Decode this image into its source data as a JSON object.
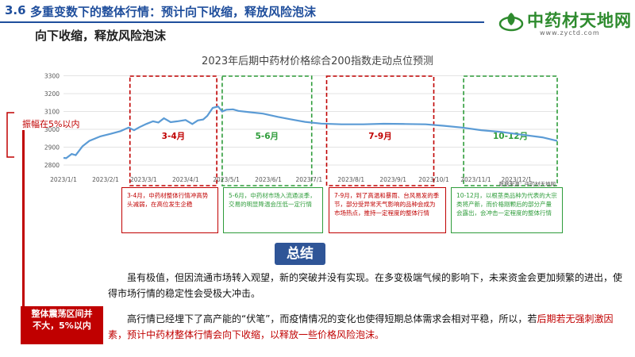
{
  "header": {
    "section_number": "3.6",
    "section_title": "多重变数下的整体行情：预计向下收缩，释放风险泡沫",
    "subtitle": "向下收缩，释放风险泡沫",
    "logo_text": "中药材天地网",
    "logo_url": "www.zyctd.com"
  },
  "range_label": "振幅在5%以内",
  "left_box": {
    "line1": "整体震荡区间并",
    "line2": "不大，5%以内"
  },
  "source_note": "数据来源：中药材天地网",
  "summary_label": "总结",
  "notes": [
    {
      "text": "3-4月，中药材整体行情冲高势头减弱，在高位发生企稳"
    },
    {
      "text": "5-6月，中药材市场入流通淡季，交易的明显降温会压低一定行情"
    },
    {
      "text": "7-9月，到了高温和暴雨、台风易发的季节，部分受异常天气影响的品种会成为市场热点，推持一定程度的整体行情"
    },
    {
      "text": "10-12月，以根茎类品种为代表的大宗类将产新，而价格刚颗后的部分产量会露出，会冲击一定程度的整体行情"
    }
  ],
  "paragraphs": {
    "p1": "虽有极值，但因流通市场转入观望，新的突破并没有实现。在多变极端气候的影响下，未来资金会更加频繁的进出，使得市场行情的稳定性会受极大冲击。",
    "p2_a": "高行情已经埋下了高产能的“伏笔”，而疫情情况的变化也使得短期总体需求会相对平稳，所以，若",
    "p2_b": "后期若无强刺激因素，预计中药材整体行情会向下收缩，以释放一些价格风险泡沫。"
  },
  "colors": {
    "accent": "#1f4e9c",
    "red": "#c00000",
    "green": "#2e9c3a",
    "line": "#5b9bd5"
  },
  "chart_data": {
    "type": "line",
    "title": "2023年后期中药材价格综合200指数走动点位预测",
    "x_ticks": [
      "2023/1/1",
      "2023/2/1",
      "2023/3/1",
      "2023/4/1",
      "2023/5/1",
      "2023/6/1",
      "2023/7/1",
      "2023/8/1",
      "2023/9/1",
      "2023/10/1",
      "2023/11/1",
      "2023/12/1"
    ],
    "y_ticks": [
      2800,
      2900,
      3000,
      3100,
      3200,
      3300
    ],
    "ylim": [
      2760,
      3320
    ],
    "grid": true,
    "series": [
      {
        "values": [
          [
            "2023-01-01",
            2840
          ],
          [
            "2023-01-03",
            2838
          ],
          [
            "2023-01-07",
            2862
          ],
          [
            "2023-01-10",
            2855
          ],
          [
            "2023-01-15",
            2905
          ],
          [
            "2023-01-20",
            2935
          ],
          [
            "2023-01-28",
            2960
          ],
          [
            "2023-02-05",
            2975
          ],
          [
            "2023-02-12",
            2990
          ],
          [
            "2023-02-18",
            3010
          ],
          [
            "2023-02-22",
            2995
          ],
          [
            "2023-02-26",
            3012
          ],
          [
            "2023-03-03",
            3030
          ],
          [
            "2023-03-08",
            3045
          ],
          [
            "2023-03-12",
            3038
          ],
          [
            "2023-03-16",
            3062
          ],
          [
            "2023-03-21",
            3040
          ],
          [
            "2023-03-26",
            3045
          ],
          [
            "2023-04-01",
            3052
          ],
          [
            "2023-04-06",
            3030
          ],
          [
            "2023-04-10",
            3050
          ],
          [
            "2023-04-14",
            3055
          ],
          [
            "2023-04-17",
            3075
          ],
          [
            "2023-04-21",
            3120
          ],
          [
            "2023-04-25",
            3128
          ],
          [
            "2023-04-28",
            3100
          ],
          [
            "2023-05-01",
            3110
          ],
          [
            "2023-05-06",
            3112
          ],
          [
            "2023-05-10",
            3103
          ],
          [
            "2023-05-18",
            3096
          ],
          [
            "2023-05-28",
            3088
          ],
          [
            "2023-06-08",
            3070
          ],
          [
            "2023-06-18",
            3055
          ],
          [
            "2023-06-28",
            3042
          ],
          [
            "2023-07-10",
            3032
          ],
          [
            "2023-07-25",
            3028
          ],
          [
            "2023-08-10",
            3028
          ],
          [
            "2023-08-25",
            3031
          ],
          [
            "2023-09-10",
            3030
          ],
          [
            "2023-09-25",
            3028
          ],
          [
            "2023-10-08",
            3020
          ],
          [
            "2023-10-22",
            3010
          ],
          [
            "2023-11-05",
            2995
          ],
          [
            "2023-11-20",
            2985
          ],
          [
            "2023-12-05",
            2970
          ],
          [
            "2023-12-20",
            2955
          ],
          [
            "2023-12-31",
            2935
          ]
        ]
      }
    ],
    "periods": [
      {
        "label": "3-4月",
        "start": "2023-02-19",
        "end": "2023-04-24",
        "color": "red"
      },
      {
        "label": "5-6月",
        "start": "2023-04-28",
        "end": "2023-07-03",
        "color": "green"
      },
      {
        "label": "7-9月",
        "start": "2023-07-14",
        "end": "2023-10-01",
        "color": "red"
      },
      {
        "label": "10-12月",
        "start": "2023-10-23",
        "end": "2023-12-31",
        "color": "green"
      }
    ]
  }
}
